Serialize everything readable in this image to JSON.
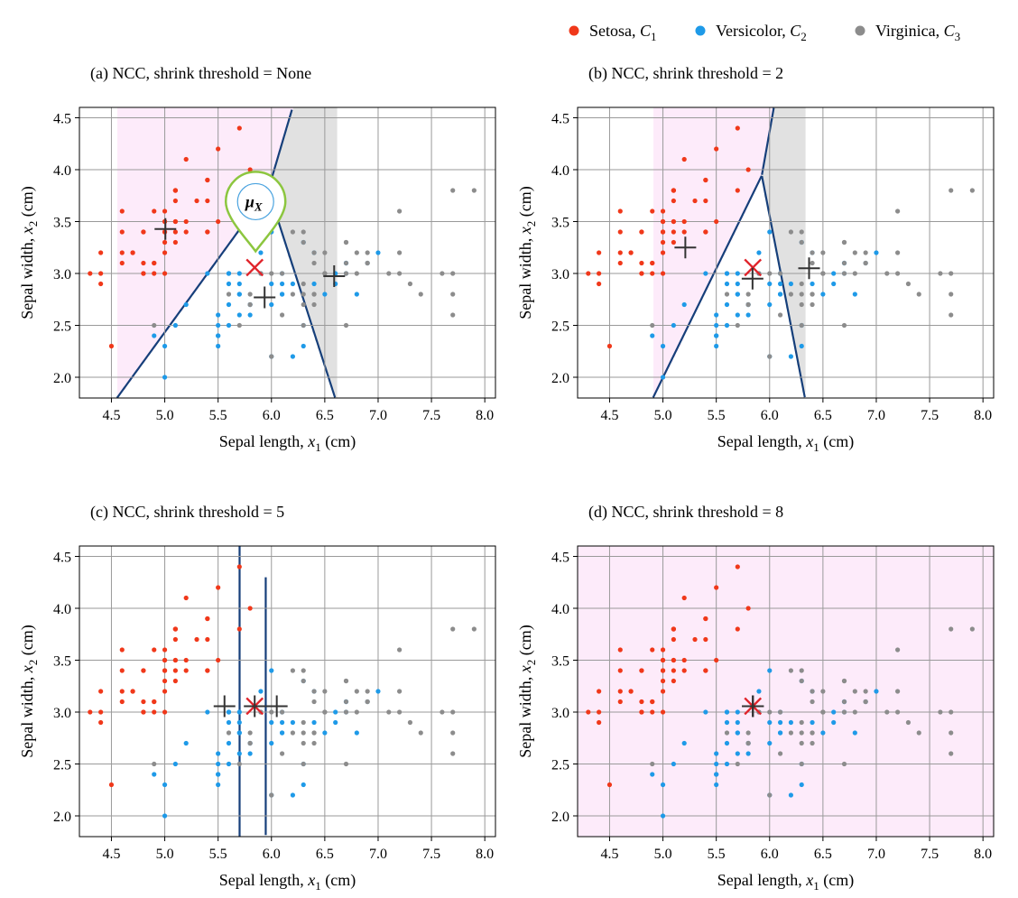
{
  "legend": [
    {
      "label": "Setosa, C",
      "sub": "1",
      "color": "#f0381a"
    },
    {
      "label": "Versicolor, C",
      "sub": "2",
      "color": "#1e9ae8"
    },
    {
      "label": "Virginica, C",
      "sub": "3",
      "color": "#8c8c8c"
    }
  ],
  "region_colors": {
    "setosa": "#fdebfa",
    "versicolor": "#d9ecf3",
    "virginica": "#e1e1e1"
  },
  "boundary_color": "#163f7a",
  "overall_mean_marker_color": "#e0232a",
  "class_centroid_marker_color": "#333333",
  "callout_label": "μ",
  "callout_sub": "X",
  "chart_data": [
    {
      "type": "scatter",
      "title": "(a) NCC, shrink threshold = None",
      "xlabel": "Sepal length, x",
      "xlabel_sub": "1",
      "xlabel_unit": "(cm)",
      "ylabel": "Sepal width, x",
      "ylabel_sub": "2",
      "ylabel_unit": "(cm)",
      "xlim": [
        4.2,
        8.1
      ],
      "ylim": [
        1.8,
        4.6
      ],
      "xticks": [
        "4.5",
        "5.0",
        "5.5",
        "6.0",
        "6.5",
        "7.0",
        "7.5",
        "8.0"
      ],
      "yticks": [
        "2.0",
        "2.5",
        "3.0",
        "3.5",
        "4.0",
        "4.5"
      ],
      "grid": true,
      "centroids": [
        [
          5.006,
          3.428
        ],
        [
          5.936,
          2.77
        ],
        [
          6.588,
          2.974
        ]
      ],
      "overall_mean": [
        5.843,
        3.057
      ],
      "show_callout": true
    },
    {
      "type": "scatter",
      "title": "(b) NCC, shrink threshold = 2",
      "xlabel": "Sepal length, x",
      "xlabel_sub": "1",
      "xlabel_unit": "(cm)",
      "ylabel": "Sepal width, x",
      "ylabel_sub": "2",
      "ylabel_unit": "(cm)",
      "xlim": [
        4.2,
        8.1
      ],
      "ylim": [
        1.8,
        4.6
      ],
      "xticks": [
        "4.5",
        "5.0",
        "5.5",
        "6.0",
        "6.5",
        "7.0",
        "7.5",
        "8.0"
      ],
      "yticks": [
        "2.0",
        "2.5",
        "3.0",
        "3.5",
        "4.0",
        "4.5"
      ],
      "grid": true,
      "centroids": [
        [
          5.21,
          3.25
        ],
        [
          5.84,
          2.95
        ],
        [
          6.37,
          3.05
        ]
      ],
      "overall_mean": [
        5.843,
        3.057
      ],
      "show_callout": false
    },
    {
      "type": "scatter",
      "title": "(c) NCC, shrink threshold = 5",
      "xlabel": "Sepal length, x",
      "xlabel_sub": "1",
      "xlabel_unit": "(cm)",
      "ylabel": "Sepal width, x",
      "ylabel_sub": "2",
      "ylabel_unit": "(cm)",
      "xlim": [
        4.2,
        8.1
      ],
      "ylim": [
        1.8,
        4.6
      ],
      "xticks": [
        "4.5",
        "5.0",
        "5.5",
        "6.0",
        "6.5",
        "7.0",
        "7.5",
        "8.0"
      ],
      "yticks": [
        "2.0",
        "2.5",
        "3.0",
        "3.5",
        "4.0",
        "4.5"
      ],
      "grid": true,
      "centroids": [
        [
          5.56,
          3.057
        ],
        [
          5.843,
          3.057
        ],
        [
          6.05,
          3.057
        ]
      ],
      "overall_mean": [
        5.843,
        3.057
      ],
      "show_callout": false
    },
    {
      "type": "scatter",
      "title": "(d) NCC, shrink threshold = 8",
      "xlabel": "Sepal length, x",
      "xlabel_sub": "1",
      "xlabel_unit": "(cm)",
      "ylabel": "Sepal width, x",
      "ylabel_sub": "2",
      "ylabel_unit": "(cm)",
      "xlim": [
        4.2,
        8.1
      ],
      "ylim": [
        1.8,
        4.6
      ],
      "xticks": [
        "4.5",
        "5.0",
        "5.5",
        "6.0",
        "6.5",
        "7.0",
        "7.5",
        "8.0"
      ],
      "yticks": [
        "2.0",
        "2.5",
        "3.0",
        "3.5",
        "4.0",
        "4.5"
      ],
      "grid": true,
      "centroids": [
        [
          5.843,
          3.057
        ],
        [
          5.843,
          3.057
        ],
        [
          5.843,
          3.057
        ]
      ],
      "overall_mean": [
        5.843,
        3.057
      ],
      "show_callout": false
    }
  ],
  "series": [
    {
      "name": "Setosa",
      "x": [
        5.1,
        4.9,
        4.7,
        4.6,
        5.0,
        5.4,
        4.6,
        5.0,
        4.4,
        4.9,
        5.4,
        4.8,
        4.8,
        4.3,
        5.8,
        5.7,
        5.4,
        5.1,
        5.7,
        5.1,
        5.4,
        5.1,
        4.6,
        5.1,
        4.8,
        5.0,
        5.0,
        5.2,
        5.2,
        4.7,
        4.8,
        5.4,
        5.2,
        5.5,
        4.9,
        5.0,
        5.5,
        4.9,
        4.4,
        5.1,
        5.0,
        4.5,
        4.4,
        5.0,
        5.1,
        4.8,
        5.1,
        4.6,
        5.3,
        5.0
      ],
      "y": [
        3.5,
        3.0,
        3.2,
        3.1,
        3.6,
        3.9,
        3.4,
        3.4,
        2.9,
        3.1,
        3.7,
        3.4,
        3.0,
        3.0,
        4.0,
        4.4,
        3.9,
        3.5,
        3.8,
        3.8,
        3.4,
        3.7,
        3.6,
        3.3,
        3.4,
        3.0,
        3.4,
        3.5,
        3.4,
        3.2,
        3.1,
        3.4,
        4.1,
        4.2,
        3.1,
        3.2,
        3.5,
        3.6,
        3.0,
        3.4,
        3.5,
        2.3,
        3.2,
        3.5,
        3.8,
        3.0,
        3.8,
        3.2,
        3.7,
        3.3
      ]
    },
    {
      "name": "Versicolor",
      "x": [
        7.0,
        6.4,
        6.9,
        5.5,
        6.5,
        5.7,
        6.3,
        4.9,
        6.6,
        5.2,
        5.0,
        5.9,
        6.0,
        6.1,
        5.6,
        6.7,
        5.6,
        5.8,
        6.2,
        5.6,
        5.9,
        6.1,
        6.3,
        6.1,
        6.4,
        6.6,
        6.8,
        6.7,
        6.0,
        5.7,
        5.5,
        5.5,
        5.8,
        6.0,
        5.4,
        6.0,
        6.7,
        6.3,
        5.6,
        5.5,
        5.5,
        6.1,
        5.8,
        5.0,
        5.6,
        5.7,
        5.7,
        6.2,
        5.1,
        5.7
      ],
      "y": [
        3.2,
        3.2,
        3.1,
        2.3,
        2.8,
        2.8,
        3.3,
        2.4,
        2.9,
        2.7,
        2.0,
        3.0,
        2.2,
        2.9,
        2.9,
        3.1,
        3.0,
        2.7,
        2.2,
        2.5,
        3.2,
        2.8,
        2.5,
        2.8,
        2.9,
        3.0,
        2.8,
        3.0,
        2.9,
        2.6,
        2.4,
        2.4,
        2.7,
        2.7,
        3.0,
        3.4,
        3.1,
        2.3,
        3.0,
        2.5,
        2.6,
        3.0,
        2.6,
        2.3,
        2.7,
        3.0,
        2.9,
        2.9,
        2.5,
        2.8
      ]
    },
    {
      "name": "Virginica",
      "x": [
        6.3,
        5.8,
        7.1,
        6.3,
        6.5,
        7.6,
        4.9,
        7.3,
        6.7,
        7.2,
        6.5,
        6.4,
        6.8,
        5.7,
        5.8,
        6.4,
        6.5,
        7.7,
        7.7,
        6.0,
        6.9,
        5.6,
        7.7,
        6.3,
        6.7,
        7.2,
        6.2,
        6.1,
        6.4,
        7.2,
        7.4,
        7.9,
        6.4,
        6.3,
        6.1,
        7.7,
        6.3,
        6.4,
        6.0,
        6.9,
        6.7,
        6.9,
        5.8,
        6.8,
        6.7,
        6.7,
        6.3,
        6.5,
        6.2,
        5.9
      ],
      "y": [
        3.3,
        2.7,
        3.0,
        2.9,
        3.0,
        3.0,
        2.5,
        2.9,
        2.5,
        3.6,
        3.2,
        2.7,
        3.0,
        2.5,
        2.8,
        3.2,
        3.0,
        3.8,
        2.6,
        2.2,
        3.2,
        2.8,
        2.8,
        2.7,
        3.3,
        3.2,
        2.8,
        3.0,
        2.8,
        3.0,
        2.8,
        3.8,
        2.8,
        2.8,
        2.6,
        3.0,
        3.4,
        3.1,
        3.0,
        3.1,
        3.1,
        3.1,
        2.7,
        3.2,
        3.3,
        3.0,
        2.5,
        3.0,
        3.4,
        3.0
      ]
    }
  ]
}
